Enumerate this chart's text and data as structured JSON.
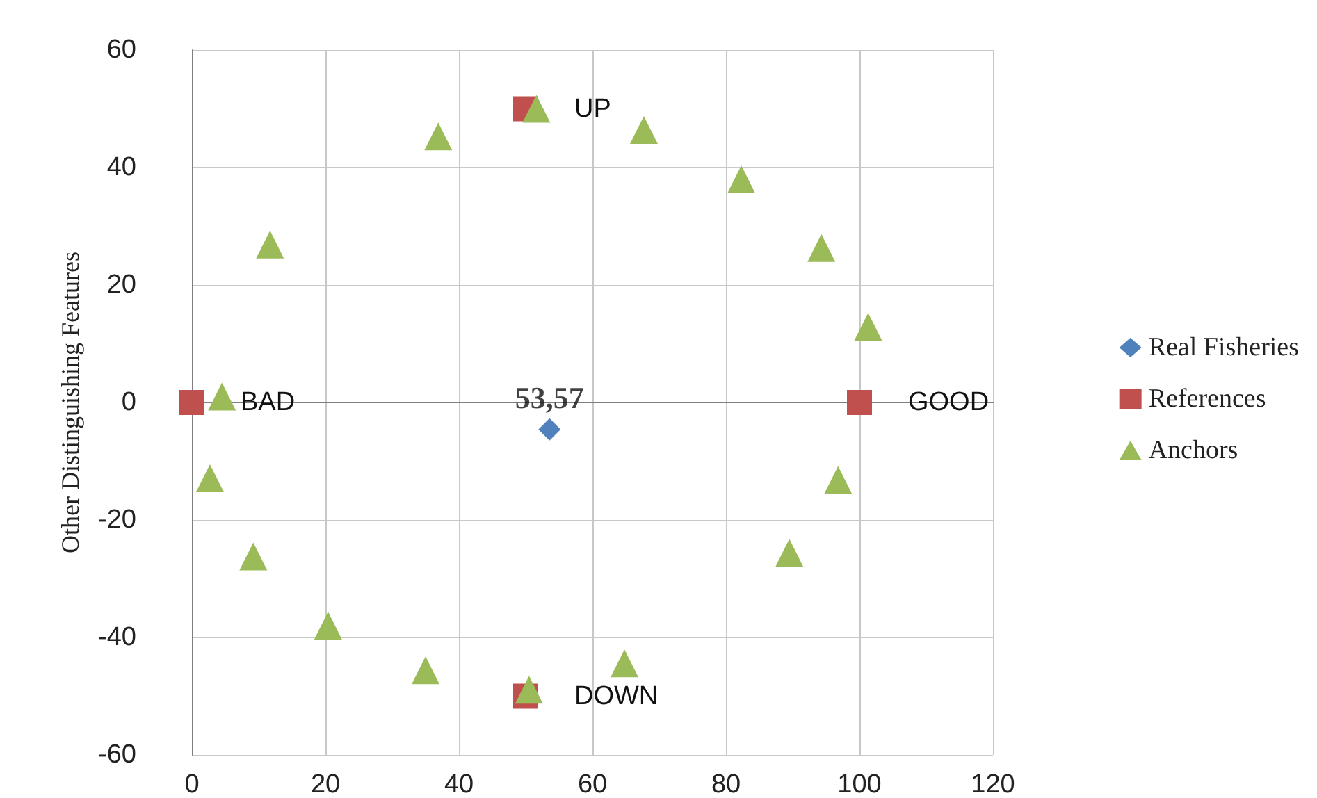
{
  "chart_data": {
    "type": "scatter",
    "ylabel": "Other Distinguishing Features",
    "xlim": [
      0,
      120
    ],
    "xticks": [
      0,
      20,
      40,
      60,
      80,
      100,
      120
    ],
    "ylim": [
      -60,
      60
    ],
    "yticks": [
      -60,
      -40,
      -20,
      0,
      20,
      40,
      60
    ],
    "grid": true,
    "legend": "right",
    "annotations": [
      {
        "text": "53,57",
        "x": 53.57,
        "y": -4.6
      }
    ],
    "series": [
      {
        "name": "Real Fisheries",
        "color": "#4f81bd",
        "marker": "diamond",
        "x": [
          53.57
        ],
        "values": [
          -4.6
        ]
      },
      {
        "name": "References",
        "color": "#c0504d",
        "marker": "square",
        "x": [
          0,
          100,
          50,
          50
        ],
        "values": [
          0,
          0,
          50,
          -50
        ],
        "value_labels": [
          "BAD",
          "GOOD",
          "UP",
          "DOWN"
        ]
      },
      {
        "name": "Anchors",
        "color": "#9bbb59",
        "marker": "triangle",
        "x": [
          4.5,
          11.7,
          36.9,
          51.6,
          67.7,
          82.3,
          94.3,
          101.3,
          96.8,
          89.5,
          64.8,
          50.5,
          35.0,
          20.4,
          9.2,
          2.7
        ],
        "values": [
          1.0,
          26.9,
          45.3,
          50.0,
          46.4,
          38.0,
          26.3,
          12.9,
          -13.2,
          -25.6,
          -44.4,
          -48.9,
          -45.6,
          -38.0,
          -26.2,
          -12.9
        ]
      }
    ]
  }
}
